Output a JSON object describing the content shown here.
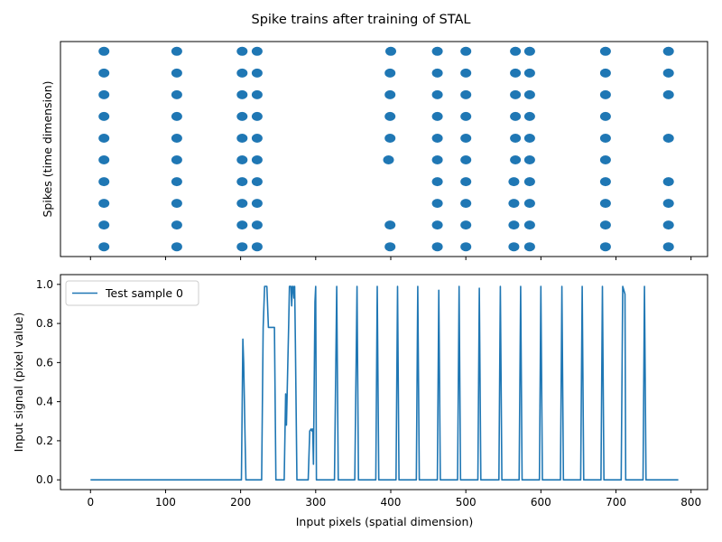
{
  "chart_data": {
    "title": "Spike trains after training of STAL",
    "color": "#1f77b4",
    "x_ticks": [
      0,
      100,
      200,
      300,
      400,
      500,
      600,
      700,
      800
    ],
    "xlim": [
      -40,
      822
    ],
    "top": {
      "type": "scatter",
      "ylabel": "Spikes (time dimension)",
      "ylim": [
        -0.45,
        9.45
      ],
      "y_ticks_visible": false,
      "x_ticklabels_visible": false,
      "points": [
        [
          18,
          0
        ],
        [
          18,
          1
        ],
        [
          18,
          2
        ],
        [
          18,
          3
        ],
        [
          18,
          4
        ],
        [
          18,
          5
        ],
        [
          18,
          6
        ],
        [
          18,
          7
        ],
        [
          18,
          8
        ],
        [
          18,
          9
        ],
        [
          115,
          0
        ],
        [
          115,
          1
        ],
        [
          115,
          2
        ],
        [
          115,
          3
        ],
        [
          115,
          4
        ],
        [
          115,
          5
        ],
        [
          115,
          6
        ],
        [
          115,
          7
        ],
        [
          115,
          8
        ],
        [
          115,
          9
        ],
        [
          202,
          0
        ],
        [
          202,
          1
        ],
        [
          202,
          2
        ],
        [
          202,
          3
        ],
        [
          202,
          4
        ],
        [
          202,
          5
        ],
        [
          202,
          6
        ],
        [
          202,
          7
        ],
        [
          202,
          8
        ],
        [
          202,
          9
        ],
        [
          222,
          0
        ],
        [
          222,
          1
        ],
        [
          222,
          2
        ],
        [
          222,
          3
        ],
        [
          222,
          4
        ],
        [
          222,
          5
        ],
        [
          222,
          6
        ],
        [
          222,
          7
        ],
        [
          222,
          8
        ],
        [
          222,
          9
        ],
        [
          399,
          0
        ],
        [
          399,
          1
        ],
        [
          397,
          4
        ],
        [
          399,
          5
        ],
        [
          399,
          6
        ],
        [
          399,
          7
        ],
        [
          399,
          8
        ],
        [
          400,
          9
        ],
        [
          462,
          0
        ],
        [
          462,
          1
        ],
        [
          462,
          2
        ],
        [
          462,
          3
        ],
        [
          462,
          4
        ],
        [
          462,
          5
        ],
        [
          462,
          6
        ],
        [
          462,
          7
        ],
        [
          462,
          8
        ],
        [
          462,
          9
        ],
        [
          500,
          0
        ],
        [
          500,
          1
        ],
        [
          500,
          2
        ],
        [
          500,
          3
        ],
        [
          500,
          4
        ],
        [
          500,
          5
        ],
        [
          500,
          6
        ],
        [
          500,
          7
        ],
        [
          500,
          8
        ],
        [
          500,
          9
        ],
        [
          564,
          0
        ],
        [
          564,
          1
        ],
        [
          564,
          2
        ],
        [
          564,
          3
        ],
        [
          566,
          4
        ],
        [
          566,
          5
        ],
        [
          566,
          6
        ],
        [
          566,
          7
        ],
        [
          566,
          8
        ],
        [
          566,
          9
        ],
        [
          585,
          0
        ],
        [
          585,
          1
        ],
        [
          585,
          2
        ],
        [
          585,
          3
        ],
        [
          585,
          4
        ],
        [
          585,
          5
        ],
        [
          585,
          6
        ],
        [
          585,
          7
        ],
        [
          585,
          8
        ],
        [
          585,
          9
        ],
        [
          686,
          0
        ],
        [
          686,
          1
        ],
        [
          686,
          2
        ],
        [
          686,
          3
        ],
        [
          686,
          4
        ],
        [
          686,
          5
        ],
        [
          686,
          6
        ],
        [
          686,
          7
        ],
        [
          686,
          8
        ],
        [
          686,
          9
        ],
        [
          770,
          0
        ],
        [
          770,
          1
        ],
        [
          770,
          2
        ],
        [
          770,
          3
        ],
        [
          770,
          5
        ],
        [
          770,
          7
        ],
        [
          770,
          8
        ],
        [
          770,
          9
        ]
      ]
    },
    "bottom": {
      "type": "line",
      "xlabel": "Input pixels (spatial dimension)",
      "ylabel": "Input signal (pixel value)",
      "ylim": [
        -0.05,
        1.05
      ],
      "y_ticks": [
        0.0,
        0.2,
        0.4,
        0.6,
        0.8,
        1.0
      ],
      "legend": "top-left",
      "series": [
        {
          "name": "Test sample 0",
          "points": [
            [
              0,
              0
            ],
            [
              201,
              0
            ],
            [
              203,
              0.72
            ],
            [
              204,
              0.6
            ],
            [
              206,
              0.2
            ],
            [
              207,
              0
            ],
            [
              228,
              0
            ],
            [
              230,
              0.78
            ],
            [
              232,
              0.99
            ],
            [
              235,
              0.99
            ],
            [
              237,
              0.78
            ],
            [
              243,
              0.78
            ],
            [
              245,
              0.78
            ],
            [
              247,
              0
            ],
            [
              258,
              0
            ],
            [
              260,
              0.44
            ],
            [
              261,
              0.28
            ],
            [
              264,
              0.8
            ],
            [
              265,
              0.99
            ],
            [
              267,
              0.99
            ],
            [
              268,
              0.89
            ],
            [
              269,
              0.99
            ],
            [
              270,
              0.99
            ],
            [
              271,
              0.93
            ],
            [
              272,
              0.99
            ],
            [
              273,
              0.7
            ],
            [
              275,
              0
            ],
            [
              290,
              0
            ],
            [
              292,
              0.25
            ],
            [
              294,
              0.26
            ],
            [
              295,
              0.25
            ],
            [
              296,
              0.26
            ],
            [
              297,
              0.08
            ],
            [
              299,
              0.91
            ],
            [
              300,
              0.99
            ],
            [
              301,
              0
            ],
            [
              325,
              0
            ],
            [
              328,
              0.99
            ],
            [
              330,
              0
            ],
            [
              352,
              0
            ],
            [
              355,
              0.99
            ],
            [
              357,
              0
            ],
            [
              380,
              0
            ],
            [
              382,
              0.99
            ],
            [
              384,
              0
            ],
            [
              407,
              0
            ],
            [
              409,
              0.99
            ],
            [
              411,
              0
            ],
            [
              434,
              0
            ],
            [
              436,
              0.99
            ],
            [
              438,
              0
            ],
            [
              462,
              0
            ],
            [
              464,
              0.97
            ],
            [
              466,
              0
            ],
            [
              489,
              0
            ],
            [
              491,
              0.99
            ],
            [
              493,
              0
            ],
            [
              516,
              0
            ],
            [
              518,
              0.98
            ],
            [
              520,
              0
            ],
            [
              544,
              0
            ],
            [
              546,
              0.99
            ],
            [
              548,
              0
            ],
            [
              571,
              0
            ],
            [
              573,
              0.99
            ],
            [
              575,
              0
            ],
            [
              598,
              0
            ],
            [
              600,
              0.99
            ],
            [
              602,
              0
            ],
            [
              626,
              0
            ],
            [
              628,
              0.99
            ],
            [
              630,
              0
            ],
            [
              653,
              0
            ],
            [
              655,
              0.99
            ],
            [
              657,
              0
            ],
            [
              680,
              0
            ],
            [
              682,
              0.99
            ],
            [
              684,
              0
            ],
            [
              707,
              0
            ],
            [
              709,
              0.99
            ],
            [
              712,
              0.95
            ],
            [
              713,
              0
            ],
            [
              736,
              0
            ],
            [
              738,
              0.99
            ],
            [
              740,
              0
            ],
            [
              783,
              0
            ]
          ]
        }
      ]
    }
  }
}
